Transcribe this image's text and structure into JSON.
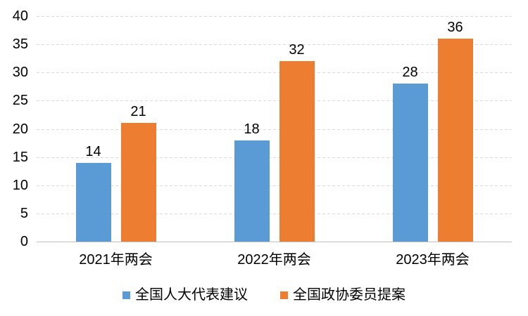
{
  "chart_data": {
    "type": "bar",
    "categories": [
      "2021年两会",
      "2022年两会",
      "2023年两会"
    ],
    "series": [
      {
        "name": "全国人大代表建议",
        "color": "#5B9BD5",
        "values": [
          14,
          18,
          28
        ]
      },
      {
        "name": "全国政协委员提案",
        "color": "#ED7D31",
        "values": [
          21,
          32,
          36
        ]
      }
    ],
    "data_labels": [
      [
        "14",
        "18",
        "28"
      ],
      [
        "21",
        "32",
        "36"
      ]
    ],
    "ylim": [
      0,
      40
    ],
    "yticks": [
      0,
      5,
      10,
      15,
      20,
      25,
      30,
      35,
      40
    ],
    "grid": "horizontal-dashed",
    "legend_position": "bottom"
  },
  "colors": {
    "background": "#FFFFFF",
    "gridline": "#D9D9D9",
    "axis_line": "#BFBFBF",
    "text": "#000000"
  }
}
